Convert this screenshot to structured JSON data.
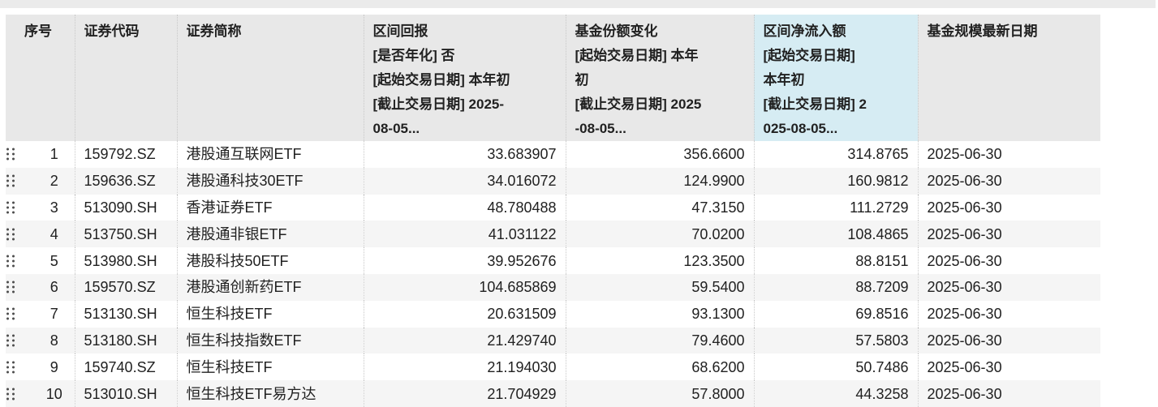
{
  "app": {
    "description": "ETF fund screening data table"
  },
  "colors": {
    "top_strip_bg": "#ebebeb",
    "header_bg": "#e8e8e8",
    "highlight_header_bg": "#d6ecf3",
    "row_stripe_bg": "#f5f5f5",
    "dotted_border": "#c8c8c8",
    "text": "#212121",
    "drag_dot": "#4d4d4d"
  },
  "icons": {
    "row_drag_handle": "six-dot-grid"
  },
  "table": {
    "columns": [
      {
        "key": "index",
        "label": "序号",
        "align": "center",
        "highlighted": false
      },
      {
        "key": "code",
        "label": "证券代码",
        "align": "left",
        "highlighted": false
      },
      {
        "key": "name",
        "label": "证券简称",
        "align": "left",
        "highlighted": false
      },
      {
        "key": "interval_return",
        "label": "区间回报\n[是否年化] 否\n[起始交易日期] 本年初\n[截止交易日期] 2025-\n08-05...",
        "align": "right",
        "highlighted": false
      },
      {
        "key": "share_change",
        "label": "基金份额变化\n[起始交易日期] 本年\n初\n[截止交易日期] 2025\n-08-05...",
        "align": "right",
        "highlighted": false
      },
      {
        "key": "net_inflow",
        "label": "区间净流入额\n[起始交易日期]\n本年初\n[截止交易日期] 2\n025-08-05...",
        "align": "right",
        "highlighted": true
      },
      {
        "key": "scale_date",
        "label": "基金规模最新日期",
        "align": "left",
        "highlighted": false
      }
    ],
    "rows": [
      {
        "index": "1",
        "code": "159792.SZ",
        "name": "港股通互联网ETF",
        "interval_return": "33.683907",
        "share_change": "356.6600",
        "net_inflow": "314.8765",
        "scale_date": "2025-06-30"
      },
      {
        "index": "2",
        "code": "159636.SZ",
        "name": "港股通科技30ETF",
        "interval_return": "34.016072",
        "share_change": "124.9900",
        "net_inflow": "160.9812",
        "scale_date": "2025-06-30"
      },
      {
        "index": "3",
        "code": "513090.SH",
        "name": "香港证券ETF",
        "interval_return": "48.780488",
        "share_change": "47.3150",
        "net_inflow": "111.2729",
        "scale_date": "2025-06-30"
      },
      {
        "index": "4",
        "code": "513750.SH",
        "name": "港股通非银ETF",
        "interval_return": "41.031122",
        "share_change": "70.0200",
        "net_inflow": "108.4865",
        "scale_date": "2025-06-30"
      },
      {
        "index": "5",
        "code": "513980.SH",
        "name": "港股科技50ETF",
        "interval_return": "39.952676",
        "share_change": "123.3500",
        "net_inflow": "88.8151",
        "scale_date": "2025-06-30"
      },
      {
        "index": "6",
        "code": "159570.SZ",
        "name": "港股通创新药ETF",
        "interval_return": "104.685869",
        "share_change": "59.5400",
        "net_inflow": "88.7209",
        "scale_date": "2025-06-30"
      },
      {
        "index": "7",
        "code": "513130.SH",
        "name": "恒生科技ETF",
        "interval_return": "20.631509",
        "share_change": "93.1300",
        "net_inflow": "69.8516",
        "scale_date": "2025-06-30"
      },
      {
        "index": "8",
        "code": "513180.SH",
        "name": "恒生科技指数ETF",
        "interval_return": "21.429740",
        "share_change": "79.4600",
        "net_inflow": "57.5803",
        "scale_date": "2025-06-30"
      },
      {
        "index": "9",
        "code": "159740.SZ",
        "name": "恒生科技ETF",
        "interval_return": "21.194030",
        "share_change": "68.6200",
        "net_inflow": "50.7486",
        "scale_date": "2025-06-30"
      },
      {
        "index": "10",
        "code": "513010.SH",
        "name": "恒生科技ETF易方达",
        "interval_return": "21.704929",
        "share_change": "57.8000",
        "net_inflow": "44.3258",
        "scale_date": "2025-06-30"
      }
    ]
  }
}
